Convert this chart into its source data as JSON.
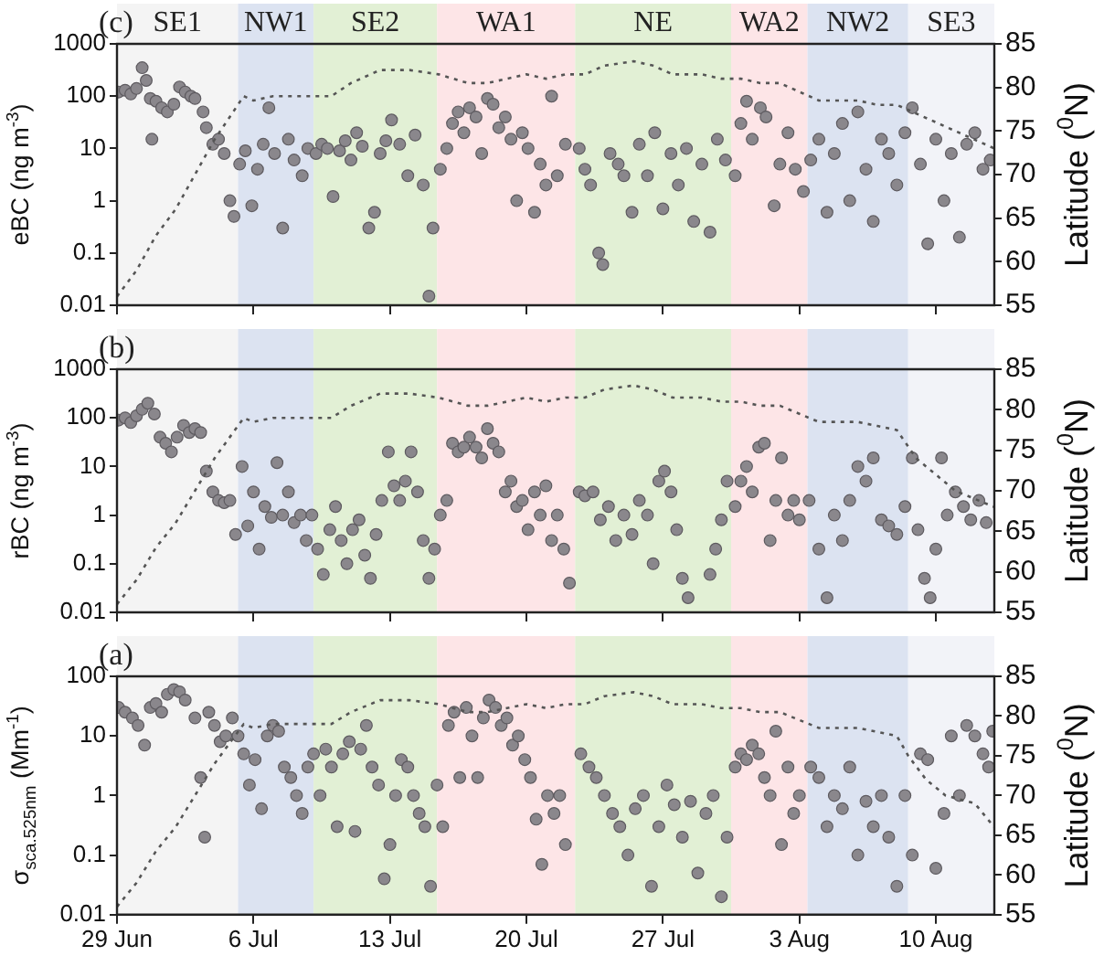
{
  "chart_data": [
    {
      "type": "scatter",
      "title": "(c)",
      "ylabel": "eBC (ng m$^{-3}$)",
      "y2label": "Latitude ($^{0}$N)",
      "log": "y",
      "grid": false,
      "legend": false,
      "tick_labels": "y",
      "xlim": [
        "--06-29",
        "--08-13"
      ],
      "xticks": [
        {
          "value": "--06-29",
          "label": "29 Jun"
        },
        {
          "value": "--07-06",
          "label": "6 Jul"
        },
        {
          "value": "--07-13",
          "label": "13 Jul"
        },
        {
          "value": "--07-20",
          "label": "20 Jul"
        },
        {
          "value": "--07-27",
          "label": "27 Jul"
        },
        {
          "value": "--08-03",
          "label": "3 Aug"
        },
        {
          "value": "--08-10",
          "label": "10 Aug"
        }
      ],
      "ylim": [
        0.01,
        1000
      ],
      "yticks": [
        0.01,
        0.1,
        1,
        10,
        100,
        1000
      ],
      "y2lim": [
        55,
        85
      ],
      "y2ticks": [
        55,
        60,
        65,
        70,
        75,
        80,
        85
      ],
      "bands": [
        {
          "axis": "x",
          "from": "--06-29",
          "to": "--07-05T05:00",
          "label": "SE1",
          "color": "#f4f4f4"
        },
        {
          "axis": "x",
          "from": "--07-05T05:00",
          "to": "--07-09T02:00",
          "label": "NW1",
          "color": "#dce3f1"
        },
        {
          "axis": "x",
          "from": "--07-09T02:00",
          "to": "--07-15T10:00",
          "label": "SE2",
          "color": "#e2f0d5"
        },
        {
          "axis": "x",
          "from": "--07-15T10:00",
          "to": "--07-22T12:00",
          "label": "WA1",
          "color": "#fde5e7"
        },
        {
          "axis": "x",
          "from": "--07-22T12:00",
          "to": "--07-30T12:00",
          "label": "NE",
          "color": "#e2f0d5"
        },
        {
          "axis": "x",
          "from": "--07-30T12:00",
          "to": "--08-03T10:00",
          "label": "WA2",
          "color": "#fde5e7"
        },
        {
          "axis": "x",
          "from": "--08-03T10:00",
          "to": "--08-08T14:00",
          "label": "NW2",
          "color": "#dce3f1"
        },
        {
          "axis": "x",
          "from": "--08-08T14:00",
          "to": "--08-13",
          "label": "SE3",
          "color": "#f2f3f8"
        }
      ],
      "series": [
        {
          "type": "scatter",
          "marker": "circle",
          "color": "#8a878c",
          "x": [
            "--06-29T02:00",
            "--06-29T10:00",
            "--06-29T17:00",
            "--06-30T00:00",
            "--06-30T07:00",
            "--06-30T12:00",
            "--06-30T17:00",
            "--06-30T19:00",
            "--07-01T00:00",
            "--07-01T07:00",
            "--07-01T14:00",
            "--07-01T22:00",
            "--07-02T05:00",
            "--07-02T12:00",
            "--07-02T19:00",
            "--07-03T00:00",
            "--07-03T10:00",
            "--07-03T14:00",
            "--07-03T22:00",
            "--07-04T05:00",
            "--07-04T12:00",
            "--07-04T19:00",
            "--07-05T00:00",
            "--07-05T07:00",
            "--07-05T14:00",
            "--07-05T22:00",
            "--07-06T05:00",
            "--07-06T12:00",
            "--07-06T19:00",
            "--07-07T02:00",
            "--07-07T12:00",
            "--07-07T19:00",
            "--07-08T02:00",
            "--07-08T12:00",
            "--07-08T19:00",
            "--07-09T05:00",
            "--07-09T12:00",
            "--07-09T19:00",
            "--07-10T02:00",
            "--07-10T10:00",
            "--07-10T17:00",
            "--07-11T00:00",
            "--07-11T07:00",
            "--07-11T14:00",
            "--07-11T22:00",
            "--07-12T05:00",
            "--07-12T12:00",
            "--07-12T19:00",
            "--07-13T02:00",
            "--07-13T12:00",
            "--07-13T22:00",
            "--07-14T07:00",
            "--07-14T17:00",
            "--07-15T00:00",
            "--07-15T05:00",
            "--07-15T14:00",
            "--07-15T22:00",
            "--07-16T05:00",
            "--07-16T12:00",
            "--07-16T19:00",
            "--07-17T02:00",
            "--07-17T10:00",
            "--07-17T17:00",
            "--07-18T00:00",
            "--07-18T07:00",
            "--07-18T14:00",
            "--07-18T22:00",
            "--07-19T05:00",
            "--07-19T12:00",
            "--07-19T19:00",
            "--07-20T02:00",
            "--07-20T10:00",
            "--07-20T17:00",
            "--07-21T00:00",
            "--07-21T07:00",
            "--07-21T14:00",
            "--07-22T00:00",
            "--07-22T17:00",
            "--07-23T00:00",
            "--07-23T07:00",
            "--07-23T17:00",
            "--07-23T22:00",
            "--07-24T07:00",
            "--07-24T17:00",
            "--07-25T00:00",
            "--07-25T10:00",
            "--07-25T19:00",
            "--07-26T05:00",
            "--07-26T14:00",
            "--07-27T00:00",
            "--07-27T10:00",
            "--07-27T19:00",
            "--07-28T05:00",
            "--07-28T14:00",
            "--07-29T00:00",
            "--07-29T10:00",
            "--07-29T19:00",
            "--07-30T05:00",
            "--07-30T17:00",
            "--07-31T00:00",
            "--07-31T07:00",
            "--07-31T14:00",
            "--08-01T00:00",
            "--08-01T07:00",
            "--08-01T17:00",
            "--08-02T00:00",
            "--08-02T10:00",
            "--08-02T19:00",
            "--08-03T05:00",
            "--08-03T14:00",
            "--08-04T00:00",
            "--08-04T10:00",
            "--08-04T19:00",
            "--08-05T05:00",
            "--08-05T14:00",
            "--08-06T00:00",
            "--08-06T10:00",
            "--08-06T19:00",
            "--08-07T05:00",
            "--08-07T14:00",
            "--08-08T00:00",
            "--08-08T10:00",
            "--08-08T19:00",
            "--08-09T05:00",
            "--08-09T14:00",
            "--08-10T00:00",
            "--08-10T10:00",
            "--08-10T19:00",
            "--08-11T05:00",
            "--08-11T14:00",
            "--08-12T00:00",
            "--08-12T10:00",
            "--08-12T19:00"
          ],
          "values": [
            120,
            130,
            110,
            140,
            350,
            200,
            90,
            15,
            80,
            60,
            50,
            70,
            150,
            120,
            100,
            90,
            50,
            25,
            12,
            15,
            8,
            1,
            0.5,
            5,
            9,
            0.8,
            4,
            12,
            60,
            8,
            0.3,
            15,
            6,
            3,
            10,
            8,
            12,
            10,
            1.2,
            9,
            14,
            6,
            20,
            11,
            0.3,
            0.6,
            8,
            14,
            35,
            12,
            3,
            18,
            2,
            0.015,
            0.3,
            4,
            10,
            30,
            50,
            20,
            60,
            40,
            8,
            90,
            70,
            25,
            40,
            15,
            1,
            20,
            10,
            0.6,
            5,
            2,
            100,
            3,
            12,
            10,
            4,
            2,
            0.1,
            0.06,
            8,
            5,
            3,
            0.6,
            12,
            3,
            20,
            0.7,
            8,
            2,
            10,
            0.4,
            5,
            0.25,
            15,
            6,
            3,
            30,
            80,
            15,
            60,
            40,
            0.8,
            5,
            20,
            4,
            1.5,
            6,
            15,
            0.6,
            8,
            30,
            1,
            50,
            4,
            0.4,
            15,
            8,
            2,
            20,
            60,
            5,
            0.15,
            15,
            1,
            8,
            0.2,
            12,
            20,
            4,
            6
          ]
        },
        {
          "type": "line",
          "axis": "y2",
          "marker": "none",
          "line_style": "dotted",
          "color": "#555555",
          "x": [
            "--06-29",
            "--06-30",
            "--07-01",
            "--07-02",
            "--07-03",
            "--07-04",
            "--07-05T12:00",
            "--07-06",
            "--07-07",
            "--07-09",
            "--07-10",
            "--07-11",
            "--07-12T12:00",
            "--07-14",
            "--07-15T12:00",
            "--07-17",
            "--07-18",
            "--07-19",
            "--07-20",
            "--07-21",
            "--07-22",
            "--07-23",
            "--07-24",
            "--07-25T12:00",
            "--07-26T12:00",
            "--07-27T12:00",
            "--07-29",
            "--07-30",
            "--07-31",
            "--08-01",
            "--08-02",
            "--08-03",
            "--08-04",
            "--08-06",
            "--08-07",
            "--08-08",
            "--08-09",
            "--08-10",
            "--08-11",
            "--08-12",
            "--08-13"
          ],
          "values": [
            56,
            59,
            63,
            66,
            70,
            74,
            79,
            78.5,
            79,
            79,
            79,
            80.5,
            82,
            82,
            81.5,
            80.5,
            80.5,
            81,
            81.5,
            81,
            81.5,
            81.5,
            82.5,
            83,
            82.5,
            81.5,
            81.5,
            81,
            81,
            80.5,
            80.5,
            79.5,
            78.5,
            78.5,
            78,
            78,
            77,
            76,
            75,
            74,
            73
          ]
        }
      ]
    },
    {
      "type": "scatter",
      "title": "(b)",
      "ylabel": "rBC (ng m$^{-3}$)",
      "y2label": "Latitude ($^{0}$N)",
      "log": "y",
      "grid": false,
      "legend": false,
      "tick_labels": "y",
      "xlim": [
        "--06-29",
        "--08-13"
      ],
      "xticks": [
        {
          "value": "--06-29",
          "label": "29 Jun"
        },
        {
          "value": "--07-06",
          "label": "6 Jul"
        },
        {
          "value": "--07-13",
          "label": "13 Jul"
        },
        {
          "value": "--07-20",
          "label": "20 Jul"
        },
        {
          "value": "--07-27",
          "label": "27 Jul"
        },
        {
          "value": "--08-03",
          "label": "3 Aug"
        },
        {
          "value": "--08-10",
          "label": "10 Aug"
        }
      ],
      "ylim": [
        0.01,
        1000
      ],
      "yticks": [
        0.01,
        0.1,
        1,
        10,
        100,
        1000
      ],
      "y2lim": [
        55,
        85
      ],
      "y2ticks": [
        55,
        60,
        65,
        70,
        75,
        80,
        85
      ],
      "bands": [
        {
          "axis": "x",
          "from": "--06-29",
          "to": "--07-05T05:00",
          "color": "#f4f4f4"
        },
        {
          "axis": "x",
          "from": "--07-05T05:00",
          "to": "--07-09T02:00",
          "color": "#dce3f1"
        },
        {
          "axis": "x",
          "from": "--07-09T02:00",
          "to": "--07-15T10:00",
          "color": "#e2f0d5"
        },
        {
          "axis": "x",
          "from": "--07-15T10:00",
          "to": "--07-22T12:00",
          "color": "#fde5e7"
        },
        {
          "axis": "x",
          "from": "--07-22T12:00",
          "to": "--07-30T12:00",
          "color": "#e2f0d5"
        },
        {
          "axis": "x",
          "from": "--07-30T12:00",
          "to": "--08-03T10:00",
          "color": "#fde5e7"
        },
        {
          "axis": "x",
          "from": "--08-03T10:00",
          "to": "--08-08T14:00",
          "color": "#dce3f1"
        },
        {
          "axis": "x",
          "from": "--08-08T14:00",
          "to": "--08-13",
          "color": "#f2f3f8"
        }
      ],
      "series": [
        {
          "type": "scatter",
          "marker": "circle",
          "color": "#8a878c",
          "x": [
            "--06-29T02:00",
            "--06-29T10:00",
            "--06-29T17:00",
            "--06-30T00:00",
            "--06-30T07:00",
            "--06-30T14:00",
            "--06-30T22:00",
            "--07-01T05:00",
            "--07-01T12:00",
            "--07-01T19:00",
            "--07-02T02:00",
            "--07-02T10:00",
            "--07-02T17:00",
            "--07-03T00:00",
            "--07-03T07:00",
            "--07-03T14:00",
            "--07-03T22:00",
            "--07-04T05:00",
            "--07-04T12:00",
            "--07-04T19:00",
            "--07-05T02:00",
            "--07-05T10:00",
            "--07-05T17:00",
            "--07-06T00:00",
            "--07-06T07:00",
            "--07-06T14:00",
            "--07-06T22:00",
            "--07-07T05:00",
            "--07-07T12:00",
            "--07-07T19:00",
            "--07-08T02:00",
            "--07-08T10:00",
            "--07-08T17:00",
            "--07-09T00:00",
            "--07-09T07:00",
            "--07-09T14:00",
            "--07-09T22:00",
            "--07-10T05:00",
            "--07-10T12:00",
            "--07-10T19:00",
            "--07-11T02:00",
            "--07-11T10:00",
            "--07-11T17:00",
            "--07-12T00:00",
            "--07-12T07:00",
            "--07-12T14:00",
            "--07-12T22:00",
            "--07-13T05:00",
            "--07-13T12:00",
            "--07-13T19:00",
            "--07-14T02:00",
            "--07-14T10:00",
            "--07-14T17:00",
            "--07-15T00:00",
            "--07-15T07:00",
            "--07-15T14:00",
            "--07-15T22:00",
            "--07-16T05:00",
            "--07-16T12:00",
            "--07-16T19:00",
            "--07-17T02:00",
            "--07-17T10:00",
            "--07-17T17:00",
            "--07-18T00:00",
            "--07-18T07:00",
            "--07-18T14:00",
            "--07-18T22:00",
            "--07-19T05:00",
            "--07-19T12:00",
            "--07-19T19:00",
            "--07-20T02:00",
            "--07-20T10:00",
            "--07-20T17:00",
            "--07-21T00:00",
            "--07-21T07:00",
            "--07-21T14:00",
            "--07-21T22:00",
            "--07-22T05:00",
            "--07-22T17:00",
            "--07-23T00:00",
            "--07-23T10:00",
            "--07-23T19:00",
            "--07-24T05:00",
            "--07-24T14:00",
            "--07-25T00:00",
            "--07-25T10:00",
            "--07-25T19:00",
            "--07-26T05:00",
            "--07-26T12:00",
            "--07-26T19:00",
            "--07-27T02:00",
            "--07-27T10:00",
            "--07-27T17:00",
            "--07-28T00:00",
            "--07-28T07:00",
            "--07-29T10:00",
            "--07-29T17:00",
            "--07-30T00:00",
            "--07-30T07:00",
            "--07-30T17:00",
            "--07-31T00:00",
            "--07-31T07:00",
            "--07-31T14:00",
            "--07-31T22:00",
            "--08-01T05:00",
            "--08-01T12:00",
            "--08-01T19:00",
            "--08-02T02:00",
            "--08-02T10:00",
            "--08-02T17:00",
            "--08-03T00:00",
            "--08-03T12:00",
            "--08-04T00:00",
            "--08-04T10:00",
            "--08-04T19:00",
            "--08-05T05:00",
            "--08-05T14:00",
            "--08-06T00:00",
            "--08-06T10:00",
            "--08-06T19:00",
            "--08-07T05:00",
            "--08-07T14:00",
            "--08-08T00:00",
            "--08-08T10:00",
            "--08-08T19:00",
            "--08-09T02:00",
            "--08-09T10:00",
            "--08-09T17:00",
            "--08-10T00:00",
            "--08-10T07:00",
            "--08-10T14:00",
            "--08-11T00:00",
            "--08-11T10:00",
            "--08-11T19:00",
            "--08-12T05:00",
            "--08-12T14:00"
          ],
          "values": [
            90,
            100,
            80,
            110,
            150,
            200,
            120,
            40,
            30,
            20,
            40,
            70,
            50,
            60,
            50,
            8,
            3,
            2,
            1.8,
            2,
            0.4,
            10,
            0.6,
            3,
            0.2,
            1.5,
            0.9,
            12,
            1,
            3,
            0.7,
            1,
            0.3,
            1,
            0.2,
            0.06,
            0.5,
            1.5,
            0.3,
            0.1,
            0.5,
            0.8,
            0.15,
            0.05,
            0.4,
            2,
            20,
            4,
            2,
            5,
            20,
            3,
            0.3,
            0.05,
            0.2,
            1,
            2,
            30,
            20,
            25,
            40,
            25,
            15,
            60,
            30,
            20,
            3,
            5,
            1.5,
            2,
            0.5,
            3,
            1,
            4,
            0.3,
            1,
            0.2,
            0.04,
            3,
            2.5,
            3,
            0.8,
            1.5,
            0.3,
            1,
            0.4,
            2,
            1,
            0.1,
            5,
            8,
            3,
            0.5,
            0.05,
            0.02,
            0.06,
            0.2,
            0.8,
            5,
            1.5,
            5,
            10,
            3,
            25,
            30,
            0.3,
            2,
            15,
            1,
            2,
            0.8,
            2,
            0.2,
            0.02,
            1,
            0.3,
            2,
            10,
            5,
            15,
            0.8,
            0.6,
            0.4,
            1.5,
            15,
            0.5,
            0.05,
            0.02,
            0.2,
            15,
            1,
            3,
            1.5,
            0.8,
            2,
            0.7
          ]
        },
        {
          "type": "line",
          "axis": "y2",
          "marker": "none",
          "line_style": "dotted",
          "color": "#555555",
          "x": [
            "--06-29",
            "--06-30",
            "--07-01",
            "--07-02",
            "--07-03",
            "--07-04",
            "--07-05T12:00",
            "--07-06",
            "--07-07",
            "--07-09",
            "--07-10",
            "--07-11",
            "--07-12T12:00",
            "--07-14",
            "--07-15T12:00",
            "--07-17",
            "--07-18",
            "--07-19",
            "--07-20",
            "--07-21",
            "--07-22",
            "--07-23",
            "--07-24",
            "--07-25T12:00",
            "--07-26T12:00",
            "--07-27T12:00",
            "--07-29",
            "--07-30",
            "--07-31",
            "--08-01",
            "--08-02",
            "--08-03",
            "--08-04",
            "--08-06",
            "--08-07",
            "--08-08",
            "--08-09",
            "--08-10",
            "--08-11",
            "--08-12",
            "--08-13"
          ],
          "values": [
            56,
            59,
            63,
            66,
            70,
            74,
            79,
            78.5,
            79,
            79,
            79,
            80.5,
            82,
            82,
            81.5,
            80.5,
            80.5,
            81,
            81.5,
            81,
            81.5,
            81.5,
            82.5,
            83,
            82.5,
            81.5,
            81.5,
            81,
            81,
            80.5,
            80.5,
            79.5,
            78.5,
            78.5,
            78,
            77.5,
            74,
            72,
            70,
            69,
            68
          ]
        }
      ]
    },
    {
      "type": "scatter",
      "title": "(a)",
      "ylabel": "σ$_{sca.525nm}$ (Mm$^{-1}$)",
      "y2label": "Latitude ($^{0}$N)",
      "log": "y",
      "grid": false,
      "legend": false,
      "xlim": [
        "--06-29",
        "--08-13"
      ],
      "xticks": [
        {
          "value": "--06-29",
          "label": "29 Jun"
        },
        {
          "value": "--07-06",
          "label": "6 Jul"
        },
        {
          "value": "--07-13",
          "label": "13 Jul"
        },
        {
          "value": "--07-20",
          "label": "20 Jul"
        },
        {
          "value": "--07-27",
          "label": "27 Jul"
        },
        {
          "value": "--08-03",
          "label": "3 Aug"
        },
        {
          "value": "--08-10",
          "label": "10 Aug"
        }
      ],
      "ylim": [
        0.01,
        100
      ],
      "yticks": [
        0.01,
        0.1,
        1,
        10,
        100
      ],
      "y2lim": [
        55,
        85
      ],
      "y2ticks": [
        55,
        60,
        65,
        70,
        75,
        80,
        85
      ],
      "bands": [
        {
          "axis": "x",
          "from": "--06-29",
          "to": "--07-05T05:00",
          "color": "#f4f4f4"
        },
        {
          "axis": "x",
          "from": "--07-05T05:00",
          "to": "--07-09T02:00",
          "color": "#dce3f1"
        },
        {
          "axis": "x",
          "from": "--07-09T02:00",
          "to": "--07-15T10:00",
          "color": "#e2f0d5"
        },
        {
          "axis": "x",
          "from": "--07-15T10:00",
          "to": "--07-22T12:00",
          "color": "#fde5e7"
        },
        {
          "axis": "x",
          "from": "--07-22T12:00",
          "to": "--07-30T12:00",
          "color": "#e2f0d5"
        },
        {
          "axis": "x",
          "from": "--07-30T12:00",
          "to": "--08-03T10:00",
          "color": "#fde5e7"
        },
        {
          "axis": "x",
          "from": "--08-03T10:00",
          "to": "--08-08T14:00",
          "color": "#dce3f1"
        },
        {
          "axis": "x",
          "from": "--08-08T14:00",
          "to": "--08-13",
          "color": "#f2f3f8"
        }
      ],
      "series": [
        {
          "type": "scatter",
          "marker": "circle",
          "color": "#8a878c",
          "x": [
            "--06-29T02:00",
            "--06-29T10:00",
            "--06-29T19:00",
            "--06-30T02:00",
            "--06-30T10:00",
            "--06-30T17:00",
            "--07-01T00:00",
            "--07-01T07:00",
            "--07-01T14:00",
            "--07-01T22:00",
            "--07-02T05:00",
            "--07-02T12:00",
            "--07-03T00:00",
            "--07-03T07:00",
            "--07-03T12:00",
            "--07-03T17:00",
            "--07-04T00:00",
            "--07-04T07:00",
            "--07-04T14:00",
            "--07-04T22:00",
            "--07-05T05:00",
            "--07-05T12:00",
            "--07-05T19:00",
            "--07-06T02:00",
            "--07-06T10:00",
            "--07-06T17:00",
            "--07-07T00:00",
            "--07-07T07:00",
            "--07-07T14:00",
            "--07-07T22:00",
            "--07-08T05:00",
            "--07-08T12:00",
            "--07-08T19:00",
            "--07-09T02:00",
            "--07-09T10:00",
            "--07-09T17:00",
            "--07-10T00:00",
            "--07-10T07:00",
            "--07-10T14:00",
            "--07-10T22:00",
            "--07-11T05:00",
            "--07-11T12:00",
            "--07-11T19:00",
            "--07-12T02:00",
            "--07-12T10:00",
            "--07-12T17:00",
            "--07-13T00:00",
            "--07-13T07:00",
            "--07-13T14:00",
            "--07-13T22:00",
            "--07-14T05:00",
            "--07-14T12:00",
            "--07-14T19:00",
            "--07-15T02:00",
            "--07-15T10:00",
            "--07-15T17:00",
            "--07-16T00:00",
            "--07-16T07:00",
            "--07-16T14:00",
            "--07-16T22:00",
            "--07-17T05:00",
            "--07-17T12:00",
            "--07-17T19:00",
            "--07-18T02:00",
            "--07-18T10:00",
            "--07-18T17:00",
            "--07-19T00:00",
            "--07-19T07:00",
            "--07-19T14:00",
            "--07-19T22:00",
            "--07-20T05:00",
            "--07-20T12:00",
            "--07-20T19:00",
            "--07-21T02:00",
            "--07-21T10:00",
            "--07-21T17:00",
            "--07-22T00:00",
            "--07-22T19:00",
            "--07-23T05:00",
            "--07-23T14:00",
            "--07-24T00:00",
            "--07-24T10:00",
            "--07-24T19:00",
            "--07-25T05:00",
            "--07-25T14:00",
            "--07-26T00:00",
            "--07-26T10:00",
            "--07-26T19:00",
            "--07-27T05:00",
            "--07-27T14:00",
            "--07-28T00:00",
            "--07-28T10:00",
            "--07-28T19:00",
            "--07-29T05:00",
            "--07-29T14:00",
            "--07-30T00:00",
            "--07-30T07:00",
            "--07-30T17:00",
            "--07-31T00:00",
            "--07-31T07:00",
            "--07-31T14:00",
            "--07-31T22:00",
            "--08-01T05:00",
            "--08-01T12:00",
            "--08-01T19:00",
            "--08-02T02:00",
            "--08-02T10:00",
            "--08-02T17:00",
            "--08-03T00:00",
            "--08-03T14:00",
            "--08-04T00:00",
            "--08-04T10:00",
            "--08-04T19:00",
            "--08-05T05:00",
            "--08-05T14:00",
            "--08-06T00:00",
            "--08-06T10:00",
            "--08-06T19:00",
            "--08-07T05:00",
            "--08-07T14:00",
            "--08-08T00:00",
            "--08-08T10:00",
            "--08-08T19:00",
            "--08-09T05:00",
            "--08-09T14:00",
            "--08-10T00:00",
            "--08-10T10:00",
            "--08-10T19:00",
            "--08-11T05:00",
            "--08-11T14:00",
            "--08-12T00:00",
            "--08-12T10:00",
            "--08-12T17:00",
            "--08-12T22:00"
          ],
          "values": [
            30,
            25,
            20,
            15,
            7,
            30,
            35,
            25,
            50,
            60,
            55,
            40,
            20,
            2,
            0.2,
            25,
            15,
            8,
            10,
            20,
            10,
            5,
            1.5,
            4,
            0.6,
            10,
            15,
            12,
            3,
            2,
            1,
            0.5,
            3,
            5,
            1,
            6,
            3,
            0.3,
            5,
            8,
            0.25,
            6,
            15,
            3,
            1.5,
            0.04,
            0.15,
            1,
            4,
            3,
            1,
            0.5,
            0.3,
            0.03,
            1.5,
            0.3,
            15,
            25,
            2,
            30,
            10,
            2,
            20,
            40,
            30,
            15,
            20,
            7,
            10,
            4,
            2,
            0.4,
            0.07,
            1,
            0.5,
            1,
            0.15,
            5,
            3,
            2,
            1,
            0.5,
            0.3,
            0.1,
            0.6,
            1,
            0.03,
            0.3,
            1.5,
            0.7,
            0.2,
            0.8,
            0.05,
            0.5,
            1,
            0.02,
            0.2,
            3,
            5,
            4,
            7,
            5,
            2,
            1,
            12,
            0.15,
            3,
            0.5,
            1,
            3,
            2,
            0.3,
            1,
            0.6,
            3,
            0.1,
            0.8,
            0.3,
            1,
            0.2,
            0.03,
            1,
            0.1,
            5,
            4,
            0.06,
            0.5,
            10,
            1,
            15,
            10,
            5,
            3,
            12
          ]
        },
        {
          "type": "line",
          "axis": "y2",
          "marker": "none",
          "line_style": "dotted",
          "color": "#555555",
          "x": [
            "--06-29",
            "--06-30",
            "--07-01",
            "--07-02",
            "--07-03",
            "--07-04",
            "--07-05T12:00",
            "--07-06",
            "--07-07",
            "--07-09",
            "--07-10",
            "--07-11",
            "--07-12T12:00",
            "--07-14",
            "--07-15T12:00",
            "--07-17",
            "--07-18",
            "--07-19",
            "--07-20",
            "--07-21",
            "--07-22",
            "--07-23",
            "--07-24",
            "--07-25T12:00",
            "--07-26T12:00",
            "--07-27T12:00",
            "--07-29",
            "--07-30",
            "--07-31",
            "--08-01",
            "--08-02",
            "--08-03",
            "--08-04",
            "--08-06",
            "--08-07",
            "--08-08",
            "--08-08T14:00",
            "--08-09T12:00",
            "--08-10T12:00",
            "--08-12",
            "--08-13"
          ],
          "values": [
            56,
            59,
            63,
            66,
            70,
            74,
            79,
            78.5,
            79,
            79,
            79,
            80.5,
            82,
            82,
            81.5,
            80.5,
            80.5,
            81,
            81.5,
            81,
            81.5,
            81.5,
            82.5,
            83,
            82.5,
            81.5,
            81.5,
            81,
            81,
            80.5,
            80.5,
            79.5,
            78.5,
            78.5,
            78,
            77.5,
            75,
            72,
            70,
            69,
            66
          ]
        }
      ]
    }
  ]
}
